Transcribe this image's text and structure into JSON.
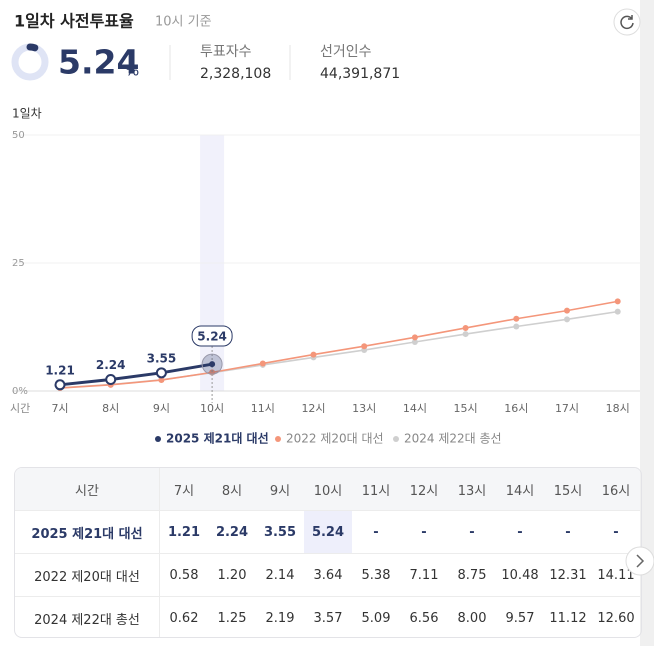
{
  "header": {
    "title": "1일차 사전투표율",
    "subtitle": "10시 기준",
    "rate": 5.24,
    "unit": "%",
    "stats": [
      {
        "label": "투표자수",
        "value": "2,328,108"
      },
      {
        "label": "선거인수",
        "value": "44,391,871"
      }
    ]
  },
  "chart_data": {
    "type": "line",
    "title": "1일차",
    "x_label": "시간",
    "categories": [
      "7시",
      "8시",
      "9시",
      "10시",
      "11시",
      "12시",
      "13시",
      "14시",
      "15시",
      "16시",
      "17시",
      "18시"
    ],
    "ylim": [
      0,
      50
    ],
    "yticks": [
      {
        "value": 0,
        "label": "0%"
      },
      25,
      50
    ],
    "grid": true,
    "legend": "bottom",
    "series": [
      {
        "name": "2025 제21대 대선",
        "color": "#2b3a67",
        "values": [
          1.21,
          2.24,
          3.55,
          5.24,
          null,
          null,
          null,
          null,
          null,
          null,
          null,
          null
        ]
      },
      {
        "name": "2022 제20대 대선",
        "color": "#f4967a",
        "values": [
          0.58,
          1.2,
          2.14,
          3.64,
          5.38,
          7.11,
          8.75,
          10.48,
          12.31,
          14.11,
          15.7,
          17.5
        ]
      },
      {
        "name": "2024 제22대 총선",
        "color": "#cfcfcf",
        "values": [
          0.62,
          1.25,
          2.19,
          3.57,
          5.09,
          6.56,
          8.0,
          9.57,
          11.12,
          12.6,
          14.0,
          15.5
        ]
      }
    ]
  },
  "table": {
    "header": [
      "시간",
      "7시",
      "8시",
      "9시",
      "10시",
      "11시",
      "12시",
      "13시",
      "14시",
      "15시",
      "16시"
    ],
    "rows": [
      [
        "2025 제21대 대선",
        "1.21",
        "2.24",
        "3.55",
        "5.24",
        "-",
        "-",
        "-",
        "-",
        "-",
        "-"
      ],
      [
        "2022 제20대 대선",
        "0.58",
        "1.20",
        "2.14",
        "3.64",
        "5.38",
        "7.11",
        "8.75",
        "10.48",
        "12.31",
        "14.11"
      ],
      [
        "2024 제22대 총선",
        "0.62",
        "1.25",
        "2.19",
        "3.57",
        "5.09",
        "6.56",
        "8.00",
        "9.57",
        "11.12",
        "12.60"
      ]
    ]
  }
}
